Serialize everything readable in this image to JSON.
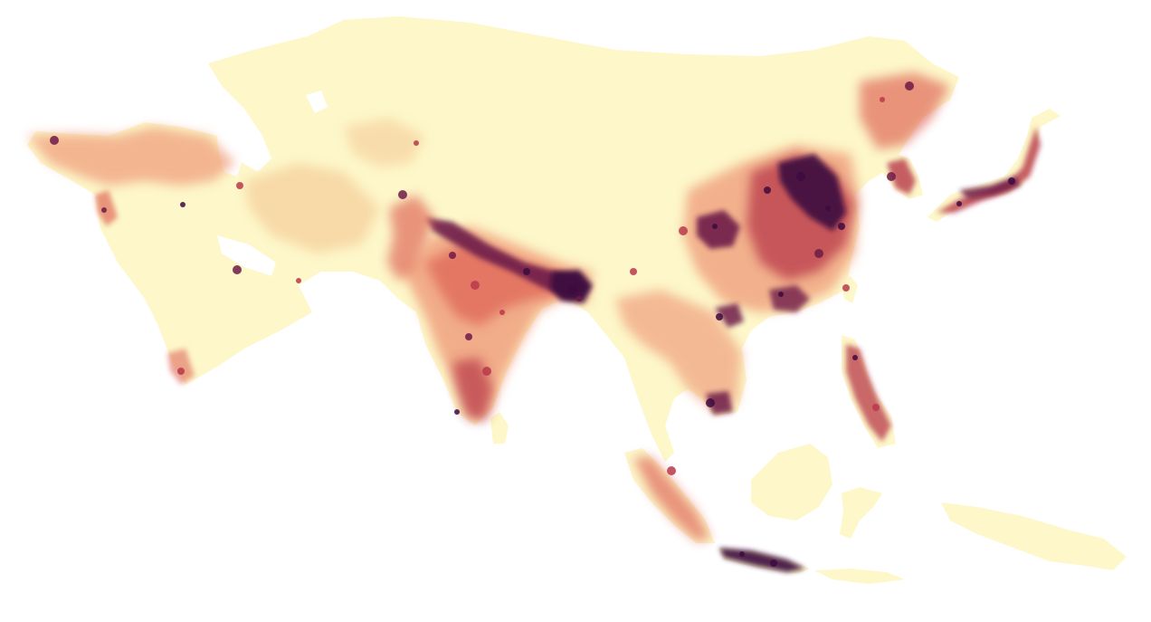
{
  "map": {
    "kind": "population density heat map",
    "region": "Asia",
    "labels_visible": false,
    "colors": {
      "background": "#ffffff",
      "land_low": "#fdf7c9",
      "low": "#f7d3a0",
      "medium_low": "#f0a07e",
      "medium": "#e06b5a",
      "high": "#b8384a",
      "very_high": "#6e1a48",
      "max": "#3d0b3f"
    },
    "density_scale": [
      "land_low",
      "low",
      "medium_low",
      "medium",
      "high",
      "very_high",
      "max"
    ]
  }
}
